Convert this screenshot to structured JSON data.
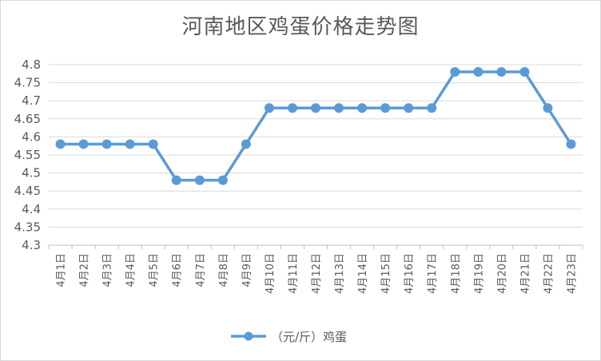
{
  "chart_data": {
    "type": "line",
    "title": "河南地区鸡蛋价格走势图",
    "xlabel": "",
    "ylabel": "",
    "categories": [
      "4月1日",
      "4月2日",
      "4月3日",
      "4月4日",
      "4月5日",
      "4月6日",
      "4月7日",
      "4月8日",
      "4月9日",
      "4月10日",
      "4月11日",
      "4月12日",
      "4月13日",
      "4月14日",
      "4月15日",
      "4月16日",
      "4月17日",
      "4月18日",
      "4月19日",
      "4月20日",
      "4月21日",
      "4月22日",
      "4月23日"
    ],
    "series": [
      {
        "name": "（元/斤）鸡蛋",
        "values": [
          4.58,
          4.58,
          4.58,
          4.58,
          4.58,
          4.48,
          4.48,
          4.48,
          4.58,
          4.68,
          4.68,
          4.68,
          4.68,
          4.68,
          4.68,
          4.68,
          4.68,
          4.78,
          4.78,
          4.78,
          4.78,
          4.68,
          4.58
        ]
      }
    ],
    "ylim": [
      4.3,
      4.8
    ],
    "yticks": [
      "4.3",
      "4.35",
      "4.4",
      "4.45",
      "4.5",
      "4.55",
      "4.6",
      "4.65",
      "4.7",
      "4.75",
      "4.8"
    ],
    "grid": true,
    "legend": "bottom",
    "series_color": "#5b9bd5"
  }
}
